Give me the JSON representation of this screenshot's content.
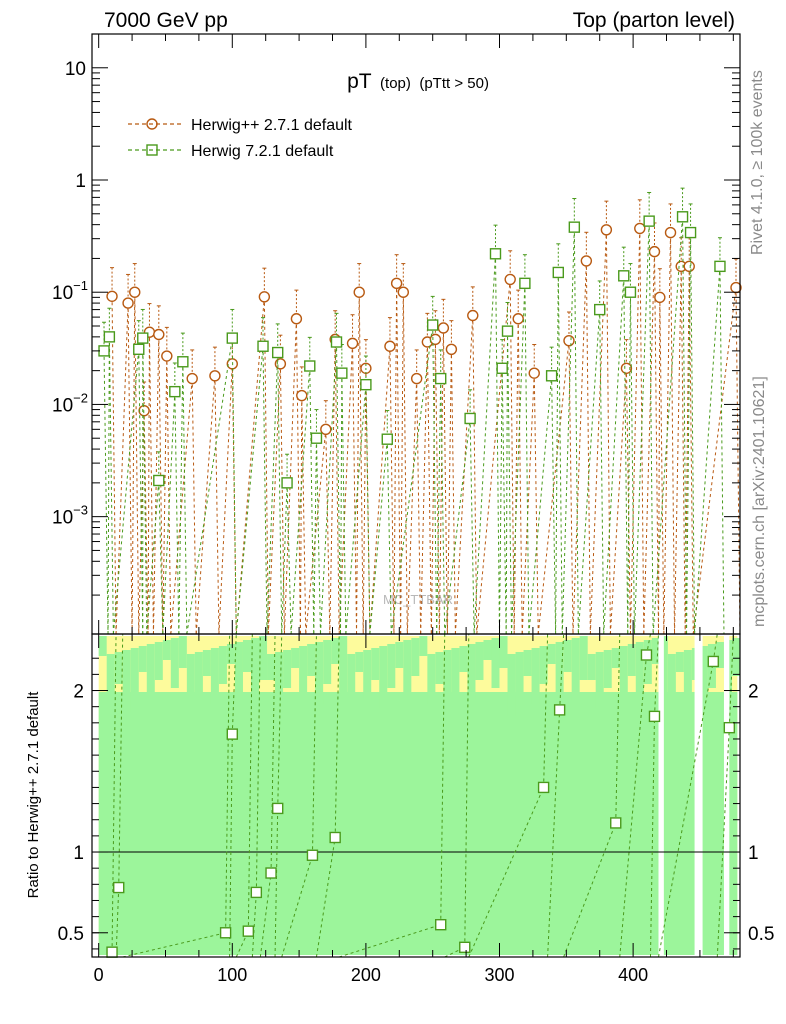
{
  "header": {
    "left": "7000 GeV pp",
    "right": "Top (parton level)"
  },
  "side_labels": {
    "rivet": "Rivet 4.1.0, ≥ 100k events",
    "mcplots": "mcplots.cern.ch [arXiv:2401.10621]"
  },
  "watermark": "MC_TTBAR",
  "chart_data": {
    "type": "line",
    "title": "pT",
    "title_sub": "(top)",
    "title_cut": "(pTtt > 50)",
    "xlabel": "",
    "ylabel": "",
    "ratio_ylabel": "Ratio to Herwig++ 2.7.1 default",
    "xlim": [
      -5,
      480
    ],
    "ylim": [
      9e-05,
      20
    ],
    "ylog": true,
    "ratio_ylim": [
      0.35,
      2.35
    ],
    "x_ticks": [
      {
        "v": 0,
        "label": "0"
      },
      {
        "v": 100,
        "label": "100"
      },
      {
        "v": 200,
        "label": "200"
      },
      {
        "v": 300,
        "label": "300"
      },
      {
        "v": 400,
        "label": "400"
      }
    ],
    "y_ticks": [
      {
        "v": 10,
        "label": "10"
      },
      {
        "v": 1,
        "label": "1"
      },
      {
        "v": 0.1,
        "label": "10",
        "exp": "−1"
      },
      {
        "v": 0.01,
        "label": "10",
        "exp": "−2"
      },
      {
        "v": 0.001,
        "label": "10",
        "exp": "−3"
      }
    ],
    "ratio_ticks": [
      {
        "v": 0.5,
        "label": "0.5"
      },
      {
        "v": 1,
        "label": "1"
      },
      {
        "v": 2,
        "label": "2"
      }
    ],
    "series": [
      {
        "name": "Herwig++ 2.7.1 default",
        "color": "#b85a12",
        "marker": "circle",
        "points": [
          [
            10,
            0.092
          ],
          [
            22,
            0.08
          ],
          [
            27,
            0.1
          ],
          [
            34,
            0.0088
          ],
          [
            38,
            0.044
          ],
          [
            45,
            0.042
          ],
          [
            51,
            0.027
          ],
          [
            70,
            0.017
          ],
          [
            87,
            0.018
          ],
          [
            100,
            0.023
          ],
          [
            124,
            0.091
          ],
          [
            136,
            0.023
          ],
          [
            148,
            0.058
          ],
          [
            152,
            0.012
          ],
          [
            170,
            0.006
          ],
          [
            177,
            0.038
          ],
          [
            190,
            0.035
          ],
          [
            195,
            0.1
          ],
          [
            200,
            0.021
          ],
          [
            218,
            0.033
          ],
          [
            223,
            0.12
          ],
          [
            228,
            0.1
          ],
          [
            238,
            0.017
          ],
          [
            246,
            0.036
          ],
          [
            252,
            0.038
          ],
          [
            258,
            0.048
          ],
          [
            264,
            0.031
          ],
          [
            280,
            0.062
          ],
          [
            308,
            0.13
          ],
          [
            314,
            0.058
          ],
          [
            326,
            0.019
          ],
          [
            352,
            0.037
          ],
          [
            365,
            0.19
          ],
          [
            380,
            0.36
          ],
          [
            395,
            0.021
          ],
          [
            405,
            0.37
          ],
          [
            416,
            0.23
          ],
          [
            420,
            0.09
          ],
          [
            428,
            0.34
          ],
          [
            436,
            0.17
          ],
          [
            442,
            0.17
          ],
          [
            477,
            0.11
          ]
        ]
      },
      {
        "name": "Herwig 7.2.1 default",
        "color": "#4a9a1c",
        "marker": "square",
        "points": [
          [
            4,
            0.03
          ],
          [
            8,
            0.04
          ],
          [
            30,
            0.031
          ],
          [
            33,
            0.039
          ],
          [
            45,
            0.0021
          ],
          [
            57,
            0.013
          ],
          [
            63,
            0.024
          ],
          [
            100,
            0.039
          ],
          [
            123,
            0.033
          ],
          [
            134,
            0.029
          ],
          [
            141,
            0.002
          ],
          [
            158,
            0.022
          ],
          [
            163,
            0.005
          ],
          [
            178,
            0.036
          ],
          [
            182,
            0.019
          ],
          [
            200,
            0.015
          ],
          [
            216,
            0.0049
          ],
          [
            250,
            0.051
          ],
          [
            256,
            0.017
          ],
          [
            278,
            0.0075
          ],
          [
            297,
            0.22
          ],
          [
            302,
            0.021
          ],
          [
            306,
            0.045
          ],
          [
            319,
            0.12
          ],
          [
            339,
            0.018
          ],
          [
            344,
            0.15
          ],
          [
            356,
            0.38
          ],
          [
            375,
            0.07
          ],
          [
            393,
            0.14
          ],
          [
            398,
            0.1
          ],
          [
            412,
            0.43
          ],
          [
            437,
            0.47
          ],
          [
            443,
            0.34
          ],
          [
            465,
            0.17
          ]
        ]
      }
    ],
    "ratio_points": [
      [
        10,
        0.38
      ],
      [
        15,
        0.78
      ],
      [
        100,
        1.73
      ],
      [
        95,
        0.5
      ],
      [
        112,
        0.51
      ],
      [
        118,
        0.75
      ],
      [
        129,
        0.87
      ],
      [
        134,
        1.27
      ],
      [
        160,
        0.98
      ],
      [
        177,
        1.09
      ],
      [
        256,
        0.55
      ],
      [
        274,
        0.41
      ],
      [
        333,
        1.4
      ],
      [
        345,
        1.88
      ],
      [
        387,
        1.18
      ],
      [
        410,
        2.22
      ],
      [
        416,
        1.84
      ],
      [
        460,
        2.18
      ],
      [
        472,
        1.77
      ]
    ]
  }
}
